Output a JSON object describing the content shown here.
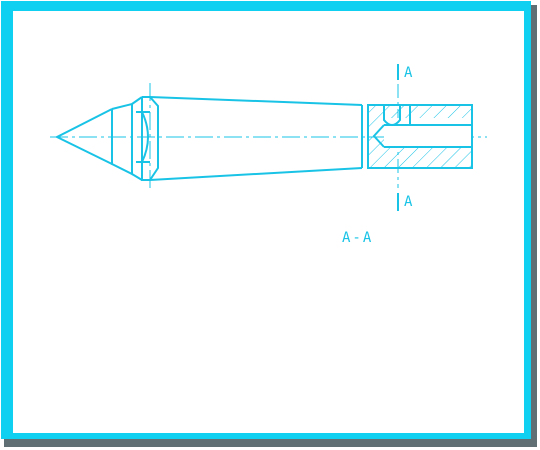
{
  "drawing": {
    "line_color": "#19c3e6",
    "frame_color": "#0fd0f0",
    "frame_shadow_color": "#5f6f73",
    "background": "#ffffff",
    "section_marker_top": "A",
    "section_marker_bottom": "A",
    "section_label": "A-A"
  }
}
